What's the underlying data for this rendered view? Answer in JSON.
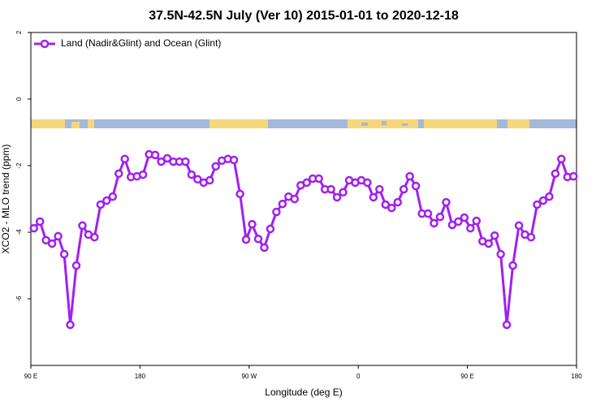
{
  "chart_data": {
    "type": "line",
    "title": "37.5N-42.5N July (Ver 10)   2015-01-01 to 2020-12-18",
    "xlabel": "Longitude (deg E)",
    "ylabel": "XCO2 - MLO trend (ppm)",
    "xlim": [
      90,
      540
    ],
    "ylim": [
      -8,
      2
    ],
    "xticks": [
      {
        "value": 90,
        "label": "90 E"
      },
      {
        "value": 180,
        "label": "180"
      },
      {
        "value": 270,
        "label": "90 W"
      },
      {
        "value": 360,
        "label": "0"
      },
      {
        "value": 450,
        "label": "90 E"
      },
      {
        "value": 540,
        "label": "180"
      }
    ],
    "yticks": [
      -6,
      -4,
      -2,
      0,
      2
    ],
    "legend_position": "upper left",
    "series": [
      {
        "name": "Land (Nadir&Glint) and Ocean (Glint)",
        "color": "#a020f0",
        "x": [
          92.5,
          97.5,
          102.5,
          107.5,
          112.5,
          117.5,
          122.5,
          127.5,
          132.5,
          137.5,
          142.5,
          147.5,
          152.5,
          157.5,
          162.5,
          167.5,
          172.5,
          177.5,
          182.5,
          187.5,
          192.5,
          197.5,
          202.5,
          207.5,
          212.5,
          217.5,
          222.5,
          227.5,
          232.5,
          237.5,
          242.5,
          247.5,
          252.5,
          257.5,
          262.5,
          267.5,
          272.5,
          277.5,
          282.5,
          287.5,
          292.5,
          297.5,
          302.5,
          307.5,
          312.5,
          317.5,
          322.5,
          327.5,
          332.5,
          337.5,
          342.5,
          347.5,
          352.5,
          357.5,
          362.5,
          367.5,
          372.5,
          377.5,
          382.5,
          387.5,
          392.5,
          397.5,
          402.5,
          407.5,
          412.5,
          417.5,
          422.5,
          427.5,
          432.5,
          437.5,
          442.5,
          447.5,
          452.5,
          457.5,
          462.5,
          467.5,
          472.5,
          477.5,
          482.5,
          487.5,
          492.5,
          497.5,
          502.5,
          507.5,
          512.5,
          517.5,
          522.5,
          527.5,
          532.5,
          537.5
        ],
        "values": [
          -3.88,
          -3.68,
          -4.24,
          -4.34,
          -4.12,
          -4.66,
          -6.78,
          -5.0,
          -3.8,
          -4.07,
          -4.15,
          -3.17,
          -3.05,
          -2.93,
          -2.24,
          -1.8,
          -2.34,
          -2.32,
          -2.27,
          -1.66,
          -1.68,
          -1.88,
          -1.78,
          -1.88,
          -1.88,
          -1.88,
          -2.27,
          -2.41,
          -2.51,
          -2.44,
          -2.02,
          -1.85,
          -1.8,
          -1.83,
          -2.85,
          -4.22,
          -3.76,
          -4.2,
          -4.46,
          -3.9,
          -3.39,
          -3.15,
          -2.93,
          -3.0,
          -2.59,
          -2.51,
          -2.39,
          -2.39,
          -2.71,
          -2.71,
          -2.95,
          -2.8,
          -2.44,
          -2.51,
          -2.44,
          -2.51,
          -2.95,
          -2.71,
          -3.17,
          -3.27,
          -3.1,
          -2.71,
          -2.32,
          -2.61,
          -3.44,
          -3.44,
          -3.73,
          -3.54,
          -3.1,
          -3.78,
          -3.68,
          -3.56,
          -3.88,
          -3.66,
          -4.27,
          -4.34,
          -4.1,
          -4.66,
          -6.78,
          -5.0,
          -3.8,
          -4.07,
          -4.15,
          -3.17,
          -3.05,
          -2.93,
          -2.24,
          -1.8,
          -2.34,
          -2.32
        ]
      }
    ]
  }
}
